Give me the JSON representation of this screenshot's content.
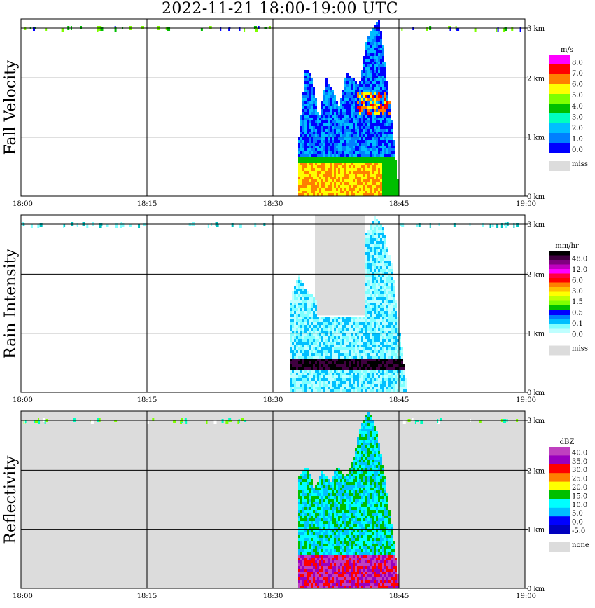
{
  "title": "2022-11-21   18:00-19:00 UTC",
  "x_ticks": [
    "18:00",
    "18:15",
    "18:30",
    "18:45",
    "19:00"
  ],
  "y_ticks": [
    "0 km",
    "1 km",
    "2 km",
    "3 km"
  ],
  "chart_data": [
    {
      "type": "heatmap",
      "ylabel": "Fall Velocity",
      "xlim": [
        "18:00",
        "19:00"
      ],
      "ylim_km": [
        0,
        3
      ],
      "grid": true,
      "legend_position": "right",
      "background": "#ffffff",
      "legend": {
        "unit": "m/s",
        "labels": [
          "8.0",
          "7.0",
          "6.0",
          "5.0",
          "4.0",
          "3.0",
          "2.0",
          "1.0",
          "0.0"
        ],
        "colors": [
          "#ff00ff",
          "#ff0000",
          "#ff7f00",
          "#ffff00",
          "#7fff00",
          "#00bf00",
          "#00ffbf",
          "#00bfff",
          "#007fff",
          "#0000ff"
        ],
        "miss_label": "miss",
        "miss_color": "#dcdcdc"
      },
      "echo": {
        "t_start": "18:33",
        "t_end": "18:45",
        "top_km": [
          1.0,
          2.2,
          2.0,
          1.3,
          2.0,
          1.8,
          1.5,
          2.1,
          2.0,
          1.9,
          2.6,
          2.9,
          3.0,
          2.1,
          1.0,
          0.0
        ],
        "core_top_km": 0.6,
        "core_end": "18:43"
      },
      "speckle": {
        "colors": [
          "#7fff00",
          "#00bf00",
          "#0000ff"
        ]
      }
    },
    {
      "type": "heatmap",
      "ylabel": "Rain Intensity",
      "xlim": [
        "18:00",
        "19:00"
      ],
      "ylim_km": [
        0,
        3
      ],
      "grid": true,
      "legend_position": "right",
      "background": "#ffffff",
      "legend": {
        "unit": "mm/hr",
        "labels": [
          "48.0",
          "12.0",
          "6.0",
          "3.0",
          "1.5",
          "0.5",
          "0.1",
          "0.0"
        ],
        "colors": [
          "#000000",
          "#400040",
          "#800080",
          "#bf00bf",
          "#ff00ff",
          "#ff0040",
          "#ff0000",
          "#ff7f00",
          "#ffbf00",
          "#ffff00",
          "#bfff00",
          "#7fff00",
          "#00bf00",
          "#0000ff",
          "#007fff",
          "#00bfff",
          "#7fffff",
          "#bfffff",
          "#ffffff"
        ],
        "miss_label": "miss",
        "miss_color": "#dcdcdc"
      },
      "miss_region": {
        "t_start": "18:35",
        "t_end": "18:41",
        "bottom_km": 1.3
      },
      "echo": {
        "t_start": "18:32",
        "t_end": "18:46",
        "top_km": [
          1.6,
          2.0,
          1.7,
          1.6,
          1.8,
          1.4,
          1.6,
          1.9,
          2.2,
          2.7,
          3.0,
          2.8,
          2.2,
          1.0,
          0.0
        ],
        "core_band_km": [
          0.4,
          0.6
        ]
      },
      "speckle": {
        "colors": [
          "#7fffff",
          "#00bfbf"
        ]
      }
    },
    {
      "type": "heatmap",
      "ylabel": "Reflectivity",
      "xlim": [
        "18:00",
        "19:00"
      ],
      "ylim_km": [
        0,
        3
      ],
      "grid": true,
      "legend_position": "right",
      "background": "#dcdcdc",
      "legend": {
        "unit": "dBZ",
        "labels": [
          "40.0",
          "35.0",
          "30.0",
          "25.0",
          "20.0",
          "15.0",
          "10.0",
          "5.0",
          "0.0",
          "-5.0"
        ],
        "colors": [
          "#bf40bf",
          "#9900bf",
          "#ff0000",
          "#ff7f00",
          "#ffff00",
          "#00bf00",
          "#00ffff",
          "#00bfff",
          "#0000ff",
          "#0000bf"
        ],
        "miss_label": "none",
        "miss_color": "#dcdcdc"
      },
      "echo": {
        "t_start": "18:33",
        "t_end": "18:45",
        "top_km": [
          1.9,
          2.1,
          1.7,
          2.0,
          1.8,
          2.1,
          1.9,
          2.2,
          2.8,
          3.0,
          2.7,
          2.0,
          1.0,
          0.0
        ],
        "core_top_km": 0.6
      },
      "speckle": {
        "colors": [
          "#7fff00",
          "#00ffbf",
          "#ffffff"
        ]
      }
    }
  ]
}
